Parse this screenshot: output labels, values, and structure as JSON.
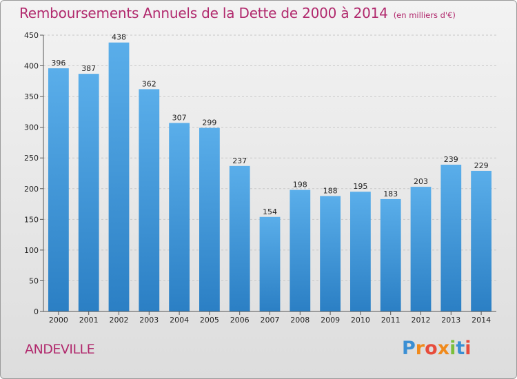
{
  "title": "Remboursements Annuels de la Dette de 2000 à 2014",
  "subtitle": "(en milliers d'€)",
  "footer_label": "ANDEVILLE",
  "logo_text": "Proxiti",
  "colors": {
    "title": "#b1296d",
    "bar_top": "#5aaeea",
    "bar_bottom": "#2b7fc4",
    "grid": "#c8c8c8"
  },
  "chart_data": {
    "type": "bar",
    "categories": [
      "2000",
      "2001",
      "2002",
      "2003",
      "2004",
      "2005",
      "2006",
      "2007",
      "2008",
      "2009",
      "2010",
      "2011",
      "2012",
      "2013",
      "2014"
    ],
    "values": [
      396,
      387,
      438,
      362,
      307,
      299,
      237,
      154,
      198,
      188,
      195,
      183,
      203,
      239,
      229
    ],
    "ylim": [
      0,
      450
    ],
    "yticks": [
      0,
      50,
      100,
      150,
      200,
      250,
      300,
      350,
      400,
      450
    ],
    "grid": true,
    "title": "Remboursements Annuels de la Dette de 2000 à 2014",
    "subtitle": "(en milliers d'€)"
  }
}
